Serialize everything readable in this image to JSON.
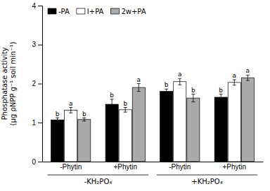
{
  "chart_data": {
    "type": "bar",
    "categories": [
      "-Phytin",
      "+Phytin",
      "-Phytin",
      "+Phytin"
    ],
    "category_groups": [
      "-KH₂PO₄",
      "+KH₂PO₄"
    ],
    "ylabel": [
      "Phosphatase activity",
      "(µg ρNPP g⁻¹ soil min⁻¹)"
    ],
    "series": [
      {
        "name": "-PA",
        "color": "#000000",
        "values": [
          1.07,
          1.47,
          1.8,
          1.65
        ],
        "errors": [
          0.05,
          0.13,
          0.06,
          0.08
        ],
        "letters": [
          "b",
          "b",
          "b",
          "b"
        ]
      },
      {
        "name": "I+PA",
        "color": "#ffffff",
        "values": [
          1.32,
          1.33,
          2.05,
          2.03
        ],
        "errors": [
          0.07,
          0.06,
          0.08,
          0.07
        ],
        "letters": [
          "a",
          "b",
          "a",
          "a"
        ]
      },
      {
        "name": "2w+PA",
        "color": "#aaaaaa",
        "values": [
          1.08,
          1.9,
          1.63,
          2.15
        ],
        "errors": [
          0.04,
          0.1,
          0.1,
          0.07
        ],
        "letters": [
          "b",
          "a",
          "b",
          "a"
        ]
      }
    ],
    "ylim": [
      0,
      4
    ],
    "yticks": [
      0,
      1,
      2,
      3,
      4
    ],
    "grid": false,
    "legend": "upper left"
  }
}
